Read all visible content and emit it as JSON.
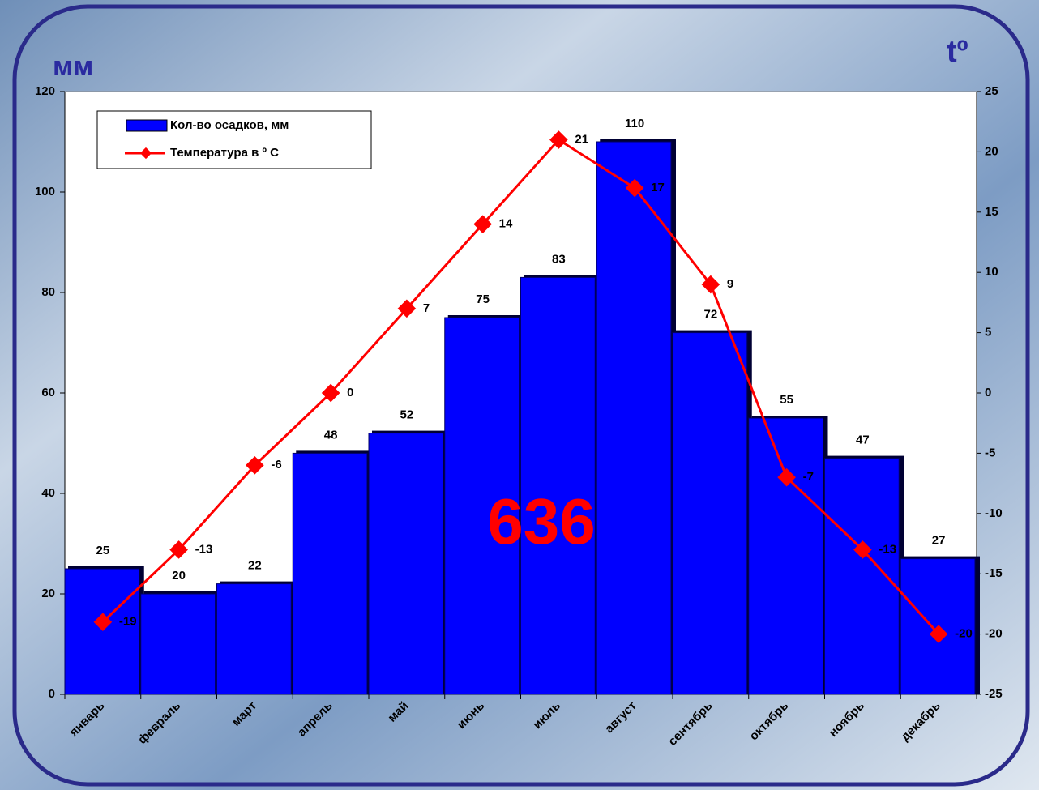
{
  "chart_data": {
    "type": "bar",
    "y_label": "мм",
    "y2_label": "tº",
    "annotation": "636",
    "categories": [
      "январь",
      "февраль",
      "март",
      "апрель",
      "май",
      "июнь",
      "июль",
      "август",
      "сентябрь",
      "октябрь",
      "ноябрь",
      "декабрь"
    ],
    "series": [
      {
        "name": "Кол-во осадков, мм",
        "color": "#0000ff",
        "values": [
          25,
          20,
          22,
          48,
          52,
          75,
          83,
          110,
          72,
          55,
          47,
          27
        ]
      },
      {
        "name": "Температура в º С",
        "color": "#ff0000",
        "type": "line",
        "axis": "y2",
        "values": [
          -19,
          -13,
          -6,
          0,
          7,
          14,
          21,
          17,
          9,
          -7,
          -13,
          -20
        ]
      }
    ],
    "ylim": [
      0,
      120
    ],
    "yticks": [
      0,
      20,
      40,
      60,
      80,
      100,
      120
    ],
    "y2lim": [
      -25,
      25
    ],
    "y2ticks": [
      -25,
      -20,
      -15,
      -10,
      -5,
      0,
      5,
      10,
      15,
      20,
      25
    ],
    "legend": "upper left"
  }
}
